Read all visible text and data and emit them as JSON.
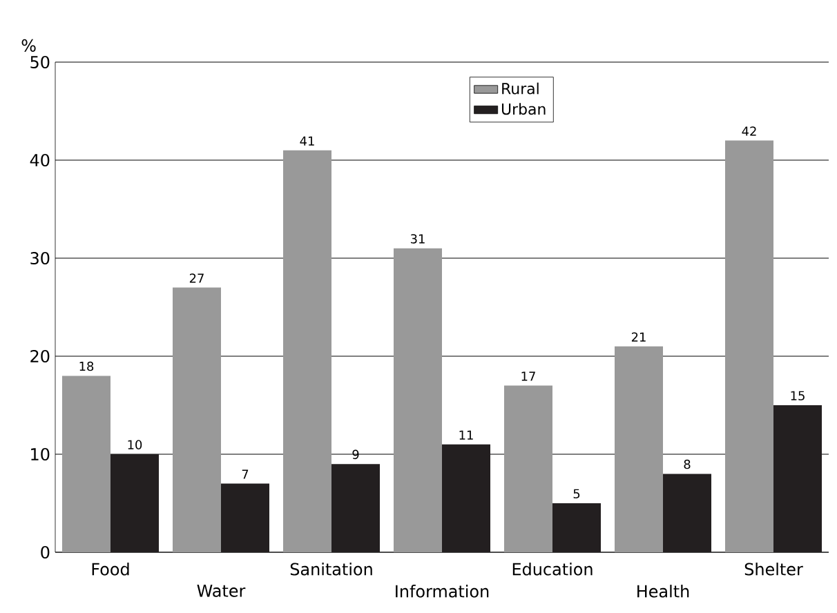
{
  "chart_data": {
    "type": "bar",
    "ylabel": "%",
    "categories": [
      "Food",
      "Water",
      "Sanitation",
      "Information",
      "Education",
      "Health",
      "Shelter"
    ],
    "series": [
      {
        "name": "Rural",
        "color": "#999999",
        "values": [
          18,
          27,
          41,
          31,
          17,
          21,
          42
        ]
      },
      {
        "name": "Urban",
        "color": "#231f20",
        "values": [
          10,
          7,
          9,
          11,
          5,
          8,
          15
        ]
      }
    ],
    "ylim": [
      0,
      50
    ],
    "yticks": [
      0,
      10,
      20,
      30,
      40,
      50
    ],
    "grid": "y",
    "legend": "top",
    "data_labels": true
  }
}
